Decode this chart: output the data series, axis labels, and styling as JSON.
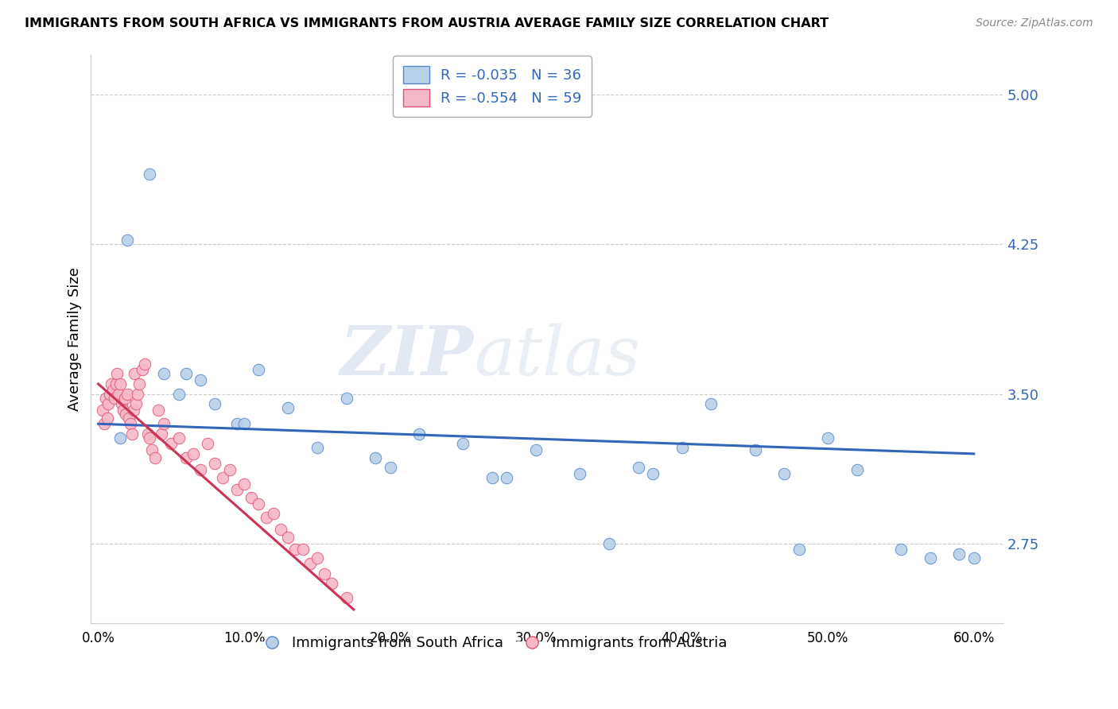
{
  "title": "IMMIGRANTS FROM SOUTH AFRICA VS IMMIGRANTS FROM AUSTRIA AVERAGE FAMILY SIZE CORRELATION CHART",
  "source": "Source: ZipAtlas.com",
  "ylabel": "Average Family Size",
  "xlabel_ticks": [
    "0.0%",
    "10.0%",
    "20.0%",
    "30.0%",
    "40.0%",
    "50.0%",
    "60.0%"
  ],
  "xlabel_vals": [
    0,
    10,
    20,
    30,
    40,
    50,
    60
  ],
  "ylim": [
    2.35,
    5.2
  ],
  "xlim": [
    -0.5,
    62
  ],
  "yticks": [
    2.75,
    3.5,
    4.25,
    5.0
  ],
  "ytick_labels": [
    "2.75",
    "3.50",
    "4.25",
    "5.00"
  ],
  "blue_fill_color": "#b8d0e8",
  "pink_fill_color": "#f5b8c8",
  "blue_edge_color": "#5588cc",
  "pink_edge_color": "#e05575",
  "blue_line_color": "#3366bb",
  "pink_line_color": "#cc3355",
  "legend_line1": "R = -0.035   N = 36",
  "legend_line2": "R = -0.554   N = 59",
  "series1_label": "Immigrants from South Africa",
  "series2_label": "Immigrants from Austria",
  "watermark_zip": "ZIP",
  "watermark_atlas": "atlas",
  "blue_scatter_x": [
    2.0,
    3.5,
    4.5,
    5.5,
    7.0,
    8.0,
    9.5,
    11.0,
    13.0,
    15.0,
    17.0,
    19.0,
    22.0,
    25.0,
    27.0,
    30.0,
    33.0,
    35.0,
    37.0,
    40.0,
    42.0,
    45.0,
    47.0,
    50.0,
    52.0,
    55.0,
    57.0,
    59.0,
    1.5,
    6.0,
    10.0,
    20.0,
    28.0,
    38.0,
    48.0,
    60.0
  ],
  "blue_scatter_y": [
    4.27,
    4.6,
    3.6,
    3.5,
    3.57,
    3.45,
    3.35,
    3.62,
    3.43,
    3.23,
    3.48,
    3.18,
    3.3,
    3.25,
    3.08,
    3.22,
    3.1,
    2.75,
    3.13,
    3.23,
    3.45,
    3.22,
    3.1,
    3.28,
    3.12,
    2.72,
    2.68,
    2.7,
    3.28,
    3.6,
    3.35,
    3.13,
    3.08,
    3.1,
    2.72,
    2.68
  ],
  "pink_scatter_x": [
    0.3,
    0.4,
    0.5,
    0.6,
    0.7,
    0.8,
    0.9,
    1.0,
    1.1,
    1.2,
    1.3,
    1.4,
    1.5,
    1.6,
    1.7,
    1.8,
    1.9,
    2.0,
    2.1,
    2.2,
    2.3,
    2.4,
    2.5,
    2.6,
    2.7,
    2.8,
    3.0,
    3.2,
    3.4,
    3.5,
    3.7,
    3.9,
    4.1,
    4.3,
    4.5,
    5.0,
    5.5,
    6.0,
    6.5,
    7.0,
    7.5,
    8.0,
    8.5,
    9.0,
    9.5,
    10.0,
    10.5,
    11.0,
    11.5,
    12.0,
    12.5,
    13.0,
    13.5,
    14.0,
    14.5,
    15.0,
    15.5,
    16.0,
    17.0
  ],
  "pink_scatter_y": [
    3.42,
    3.35,
    3.48,
    3.38,
    3.45,
    3.5,
    3.55,
    3.52,
    3.48,
    3.55,
    3.6,
    3.5,
    3.55,
    3.45,
    3.42,
    3.48,
    3.4,
    3.5,
    3.38,
    3.35,
    3.3,
    3.42,
    3.6,
    3.45,
    3.5,
    3.55,
    3.62,
    3.65,
    3.3,
    3.28,
    3.22,
    3.18,
    3.42,
    3.3,
    3.35,
    3.25,
    3.28,
    3.18,
    3.2,
    3.12,
    3.25,
    3.15,
    3.08,
    3.12,
    3.02,
    3.05,
    2.98,
    2.95,
    2.88,
    2.9,
    2.82,
    2.78,
    2.72,
    2.72,
    2.65,
    2.68,
    2.6,
    2.55,
    2.48
  ],
  "blue_line_x0": 0.0,
  "blue_line_x1": 60.0,
  "blue_line_y0": 3.35,
  "blue_line_y1": 3.2,
  "pink_line_x0": 0.0,
  "pink_line_x1": 17.5,
  "pink_line_y0": 3.55,
  "pink_line_y1": 2.42
}
